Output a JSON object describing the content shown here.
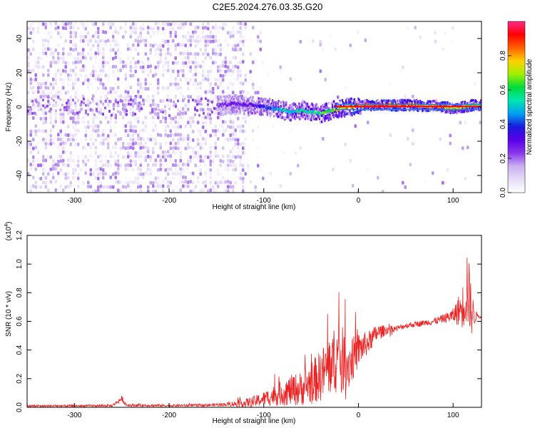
{
  "title": "C2E5.2024.276.03.35.G20",
  "colors": {
    "snr_line": "#ee2222",
    "colormap": [
      "#ffffff",
      "#e6dcf6",
      "#c8b0f0",
      "#8a38ec",
      "#5a00e8",
      "#1a1ae0",
      "#00a0f0",
      "#00e6b0",
      "#00dc3c",
      "#a0f000",
      "#ffd000",
      "#ff6000",
      "#ff0000",
      "#ff2a8a"
    ]
  },
  "chart_data": [
    {
      "type": "heatmap",
      "title": "C2E5.2024.276.03.35.G20",
      "xlabel": "Height of straight line (km)",
      "ylabel": "Frequency (Hz)",
      "xlim": [
        -350,
        130
      ],
      "ylim": [
        -50,
        50
      ],
      "x_ticks": [
        "-300",
        "-200",
        "-100",
        "0",
        "100"
      ],
      "y_ticks": [
        "-40",
        "-20",
        "0",
        "20",
        "40"
      ],
      "colorbar": {
        "label": "Normalized spectral amplitude",
        "range": [
          0,
          1
        ],
        "ticks": [
          "0.0",
          "0.2",
          "0.4",
          "0.6",
          "0.8"
        ]
      },
      "signal_trace": {
        "x": [
          -150,
          -130,
          -110,
          -100,
          -90,
          -80,
          -70,
          -60,
          -50,
          -40,
          -30,
          -20,
          -10,
          0,
          10,
          60,
          70,
          80,
          90,
          100,
          110,
          120,
          130
        ],
        "freq": [
          1,
          2,
          1,
          0,
          -1,
          -2,
          -3,
          -2,
          -3,
          -4,
          -2,
          -1,
          0,
          1,
          1,
          1,
          0,
          1,
          0,
          -1,
          0,
          1,
          1
        ],
        "amplitude": [
          0.25,
          0.3,
          0.35,
          0.4,
          0.5,
          0.55,
          0.55,
          0.6,
          0.6,
          0.65,
          0.7,
          0.8,
          0.85,
          0.9,
          0.95,
          0.9,
          0.85,
          0.9,
          0.85,
          0.8,
          0.75,
          0.7,
          0.65
        ]
      }
    },
    {
      "type": "line",
      "xlabel": "Height of straight line (km)",
      "ylabel": "SNR (10 * v/v)",
      "scale_note": "(x10",
      "scale_exp": "4",
      "xlim": [
        -350,
        130
      ],
      "ylim": [
        0,
        1.2
      ],
      "x_ticks": [
        "-300",
        "-200",
        "-100",
        "0",
        "100"
      ],
      "y_ticks": [
        "0.0",
        "0.2",
        "0.4",
        "0.6",
        "0.8",
        "1.0",
        "1.2"
      ],
      "series": [
        {
          "x": [
            -350,
            -300,
            -260,
            -250,
            -245,
            -200,
            -160,
            -140,
            -120,
            -110,
            -100,
            -90,
            -80,
            -70,
            -60,
            -50,
            -40,
            -30,
            -20,
            -10,
            0,
            10,
            20,
            30,
            40,
            50,
            60,
            70,
            80,
            90,
            100,
            110,
            115,
            120,
            125,
            130
          ],
          "y": [
            0.01,
            0.01,
            0.012,
            0.06,
            0.015,
            0.012,
            0.015,
            0.02,
            0.03,
            0.04,
            0.06,
            0.08,
            0.1,
            0.12,
            0.13,
            0.17,
            0.22,
            0.3,
            0.35,
            0.3,
            0.4,
            0.45,
            0.52,
            0.54,
            0.55,
            0.57,
            0.58,
            0.59,
            0.6,
            0.62,
            0.64,
            0.7,
            0.85,
            0.65,
            0.64,
            0.64
          ],
          "noise": [
            0.008,
            0.008,
            0.008,
            0.02,
            0.01,
            0.008,
            0.01,
            0.012,
            0.03,
            0.04,
            0.05,
            0.07,
            0.09,
            0.11,
            0.12,
            0.15,
            0.18,
            0.22,
            0.25,
            0.18,
            0.12,
            0.08,
            0.06,
            0.03,
            0.02,
            0.02,
            0.02,
            0.02,
            0.025,
            0.03,
            0.05,
            0.15,
            0.3,
            0.15,
            0.02,
            0.02
          ]
        }
      ]
    }
  ]
}
